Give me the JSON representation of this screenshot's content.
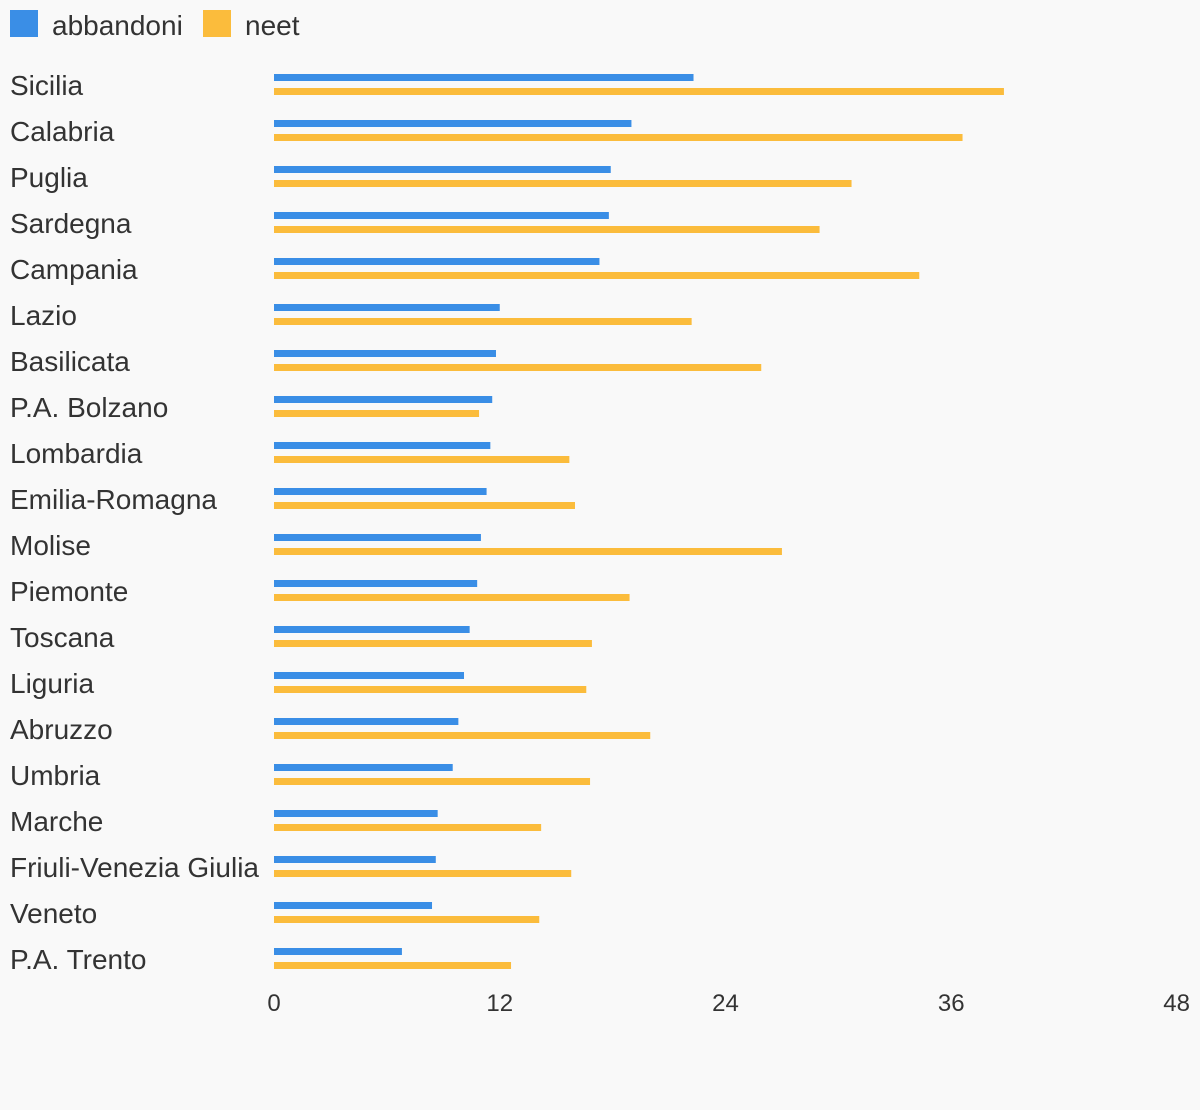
{
  "chart_data": {
    "type": "bar",
    "orientation": "horizontal",
    "title": "",
    "xlabel": "",
    "ylabel": "",
    "xlim": [
      0,
      48
    ],
    "ticks": [
      "0",
      "12",
      "24",
      "36",
      "48"
    ],
    "grid": false,
    "legend_position": "top-left",
    "categories": [
      "Sicilia",
      "Calabria",
      "Puglia",
      "Sardegna",
      "Campania",
      "Lazio",
      "Basilicata",
      "P.A. Bolzano",
      "Lombardia",
      "Emilia-Romagna",
      "Molise",
      "Piemonte",
      "Toscana",
      "Liguria",
      "Abruzzo",
      "Umbria",
      "Marche",
      "Friuli-Venezia Giulia",
      "Veneto",
      "P.A. Trento"
    ],
    "series": [
      {
        "name": "abbandoni",
        "color": "#3a8ee6",
        "values": [
          22.3,
          19.0,
          17.9,
          17.8,
          17.3,
          12.0,
          11.8,
          11.6,
          11.5,
          11.3,
          11.0,
          10.8,
          10.4,
          10.1,
          9.8,
          9.5,
          8.7,
          8.6,
          8.4,
          6.8
        ]
      },
      {
        "name": "neet",
        "color": "#fbbc3c",
        "values": [
          38.8,
          36.6,
          30.7,
          29.0,
          34.3,
          22.2,
          25.9,
          10.9,
          15.7,
          16.0,
          27.0,
          18.9,
          16.9,
          16.6,
          20.0,
          16.8,
          14.2,
          15.8,
          14.1,
          12.6
        ]
      }
    ]
  }
}
